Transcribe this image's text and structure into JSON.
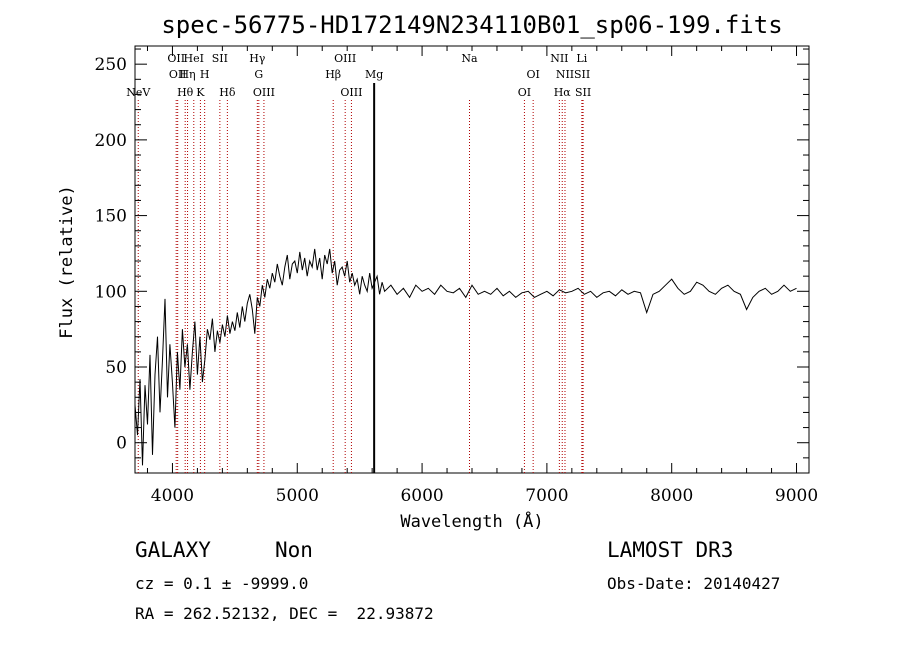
{
  "chart_data": {
    "type": "line",
    "title": "spec-56775-HD172149N234110B01_sp06-199.fits",
    "xlabel": "Wavelength (Å)",
    "ylabel": "Flux (relative)",
    "xlim": [
      3700,
      9100
    ],
    "ylim": [
      -20,
      262
    ],
    "x_ticks": [
      4000,
      5000,
      6000,
      7000,
      8000,
      9000
    ],
    "y_ticks": [
      0,
      50,
      100,
      150,
      200,
      250
    ],
    "grid": false,
    "series": [
      {
        "x": [
          3700,
          3720,
          3740,
          3760,
          3780,
          3800,
          3820,
          3840,
          3860,
          3880,
          3900,
          3920,
          3940,
          3960,
          3980,
          4000,
          4020,
          4040,
          4060,
          4080,
          4100,
          4120,
          4140,
          4160,
          4180,
          4200,
          4220,
          4240,
          4260,
          4280,
          4300,
          4320,
          4340,
          4360,
          4380,
          4400,
          4420,
          4440,
          4460,
          4480,
          4500,
          4520,
          4540,
          4560,
          4580,
          4600,
          4620,
          4640,
          4660,
          4680,
          4700,
          4720,
          4740,
          4760,
          4780,
          4800,
          4820,
          4840,
          4860,
          4880,
          4900,
          4920,
          4940,
          4960,
          4980,
          5000,
          5020,
          5040,
          5060,
          5080,
          5100,
          5120,
          5140,
          5160,
          5180,
          5200,
          5220,
          5240,
          5260,
          5280,
          5300,
          5320,
          5340,
          5360,
          5380,
          5400,
          5420,
          5440,
          5460,
          5480,
          5500,
          5520,
          5540,
          5560,
          5580,
          5600,
          5620,
          5640,
          5660,
          5680,
          5700,
          5750,
          5800,
          5850,
          5900,
          5950,
          6000,
          6050,
          6100,
          6150,
          6200,
          6250,
          6300,
          6350,
          6400,
          6450,
          6500,
          6550,
          6600,
          6650,
          6700,
          6750,
          6800,
          6850,
          6900,
          6950,
          7000,
          7050,
          7100,
          7150,
          7200,
          7250,
          7300,
          7350,
          7400,
          7450,
          7500,
          7550,
          7600,
          7650,
          7700,
          7750,
          7800,
          7850,
          7900,
          7950,
          8000,
          8050,
          8100,
          8150,
          8200,
          8250,
          8300,
          8350,
          8400,
          8450,
          8500,
          8550,
          8600,
          8650,
          8700,
          8750,
          8800,
          8850,
          8900,
          8950,
          9000
        ],
        "y": [
          25,
          5,
          42,
          -15,
          38,
          12,
          58,
          -8,
          45,
          70,
          20,
          55,
          95,
          30,
          65,
          40,
          10,
          60,
          35,
          75,
          50,
          65,
          35,
          60,
          80,
          45,
          70,
          40,
          55,
          75,
          68,
          82,
          60,
          74,
          66,
          78,
          70,
          84,
          72,
          80,
          74,
          86,
          76,
          90,
          80,
          92,
          98,
          88,
          72,
          96,
          90,
          104,
          96,
          108,
          102,
          112,
          106,
          118,
          110,
          104,
          116,
          124,
          108,
          118,
          120,
          112,
          126,
          114,
          122,
          110,
          120,
          116,
          128,
          114,
          122,
          108,
          124,
          118,
          128,
          112,
          120,
          104,
          114,
          116,
          110,
          120,
          106,
          112,
          104,
          108,
          98,
          110,
          104,
          100,
          112,
          102,
          106,
          110,
          98,
          106,
          100,
          104,
          98,
          102,
          96,
          104,
          100,
          102,
          98,
          104,
          100,
          99,
          102,
          96,
          104,
          98,
          100,
          98,
          102,
          97,
          100,
          96,
          99,
          100,
          96,
          98,
          100,
          97,
          101,
          99,
          100,
          102,
          98,
          100,
          96,
          99,
          100,
          97,
          101,
          98,
          100,
          99,
          86,
          98,
          100,
          104,
          108,
          102,
          98,
          100,
          106,
          104,
          100,
          98,
          102,
          104,
          100,
          98,
          88,
          96,
          100,
          102,
          98,
          100,
          104,
          100,
          102
        ]
      }
    ],
    "line_colors": {
      "series": "#000000",
      "markers": "#b00000",
      "strong": "#000000"
    },
    "lines": [
      {
        "wave": 3726,
        "row": 3,
        "label": "NeV"
      },
      {
        "wave": 4030,
        "row": 1,
        "label": "OII"
      },
      {
        "wave": 4042,
        "row": 2,
        "label": "OII"
      },
      {
        "wave": 4102,
        "row": 3,
        "label": "Hθ"
      },
      {
        "wave": 4121,
        "row": 2,
        "label": "Hη"
      },
      {
        "wave": 4171,
        "row": 1,
        "label": "HeI"
      },
      {
        "wave": 4224,
        "row": 3,
        "label": "K"
      },
      {
        "wave": 4258,
        "row": 2,
        "label": "H"
      },
      {
        "wave": 4380,
        "row": 1,
        "label": "SII"
      },
      {
        "wave": 4440,
        "row": 3,
        "label": "Hδ"
      },
      {
        "wave": 4680,
        "row": 1,
        "label": "Hγ"
      },
      {
        "wave": 4692,
        "row": 2,
        "label": "G"
      },
      {
        "wave": 4733,
        "row": 3,
        "label": "OIII"
      },
      {
        "wave": 5288,
        "row": 2,
        "label": "Hβ"
      },
      {
        "wave": 5384,
        "row": 1,
        "label": "OIII"
      },
      {
        "wave": 5434,
        "row": 3,
        "label": "OIII"
      },
      {
        "wave": 5616,
        "row": 2,
        "label": "Mg",
        "strong": true
      },
      {
        "wave": 6380,
        "row": 1,
        "label": "Na"
      },
      {
        "wave": 6820,
        "row": 3,
        "label": "OI"
      },
      {
        "wave": 6890,
        "row": 2,
        "label": "OI"
      },
      {
        "wave": 7100,
        "row": 1,
        "label": "NII"
      },
      {
        "wave": 7123,
        "row": 3,
        "label": "Hα"
      },
      {
        "wave": 7145,
        "row": 2,
        "label": "NII"
      },
      {
        "wave": 7280,
        "row": 1,
        "label": "Li"
      },
      {
        "wave": 7282,
        "row": 2,
        "label": "SII"
      },
      {
        "wave": 7290,
        "row": 3,
        "label": "SII"
      }
    ]
  },
  "info": {
    "object_class": "GALAXY",
    "subclass": "Non",
    "cz": "cz = 0.1 ± -9999.0",
    "coords": "RA = 262.52132, DEC =  22.93872",
    "survey": "LAMOST DR3",
    "obs_date": "Obs-Date: 20140427"
  }
}
